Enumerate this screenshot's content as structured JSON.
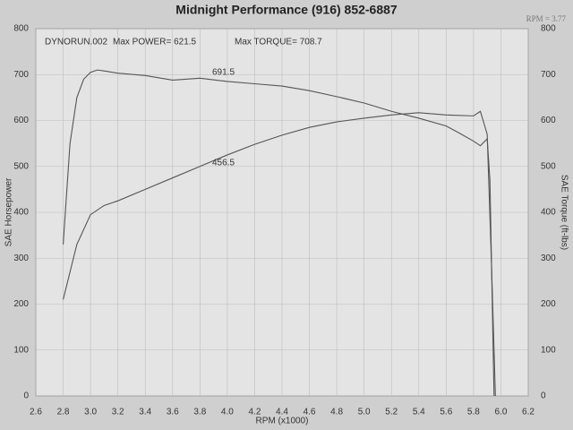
{
  "chart_data": {
    "type": "line",
    "title": "Midnight Performance (916) 852-6887",
    "subtitle": "RPM = 3.77",
    "x_label": "RPM (x1000)",
    "y_label": "SAE Horsepower",
    "y2_label": "SAE Torque (ft-lbs)",
    "annotations": [
      "DYNORUN.002",
      "Max POWER= 621.5",
      "Max TORQUE= 708.7",
      "691.5",
      "456.5"
    ],
    "xlim": [
      2.6,
      6.2
    ],
    "xticks": [
      2.6,
      2.8,
      {
        "value": 3,
        "label": "3.0"
      },
      3.2,
      3.4,
      3.6,
      3.8,
      {
        "value": 4,
        "label": "4.0"
      },
      4.2,
      4.4,
      4.6,
      4.8,
      {
        "value": 5,
        "label": "5.0"
      },
      5.2,
      5.4,
      5.6,
      5.8,
      {
        "value": 6,
        "label": "6.0"
      },
      6.2
    ],
    "ylim": [
      0,
      800
    ],
    "yticks": [
      0,
      100,
      200,
      300,
      400,
      500,
      600,
      700,
      800
    ],
    "y2lim": [
      0,
      800
    ],
    "y2ticks": [
      0,
      100,
      200,
      300,
      400,
      500,
      600,
      700,
      800
    ],
    "grid": true,
    "series": [
      {
        "name": "SAE Horsepower",
        "color": "#555555",
        "x": [
          2.8,
          2.85,
          2.9,
          3.0,
          3.1,
          3.2,
          3.4,
          3.6,
          3.8,
          4.0,
          4.2,
          4.4,
          4.6,
          4.8,
          5.0,
          5.2,
          5.4,
          5.6,
          5.8,
          5.85,
          5.9,
          5.93,
          5.96
        ],
        "values": [
          210,
          270,
          330,
          395,
          415,
          425,
          450,
          475,
          500,
          525,
          548,
          568,
          585,
          597,
          605,
          612,
          617,
          612,
          610,
          620,
          570,
          300,
          0
        ]
      },
      {
        "name": "SAE Torque",
        "color": "#555555",
        "axis": "y2",
        "x": [
          2.8,
          2.85,
          2.9,
          2.95,
          3.0,
          3.05,
          3.1,
          3.2,
          3.4,
          3.6,
          3.8,
          4.0,
          4.2,
          4.4,
          4.6,
          4.8,
          5.0,
          5.2,
          5.4,
          5.6,
          5.7,
          5.8,
          5.85,
          5.9,
          5.92,
          5.95
        ],
        "values": [
          330,
          550,
          650,
          690,
          705,
          710,
          708,
          703,
          698,
          688,
          692,
          685,
          680,
          675,
          665,
          652,
          638,
          620,
          605,
          588,
          572,
          555,
          545,
          560,
          470,
          0
        ]
      }
    ]
  }
}
